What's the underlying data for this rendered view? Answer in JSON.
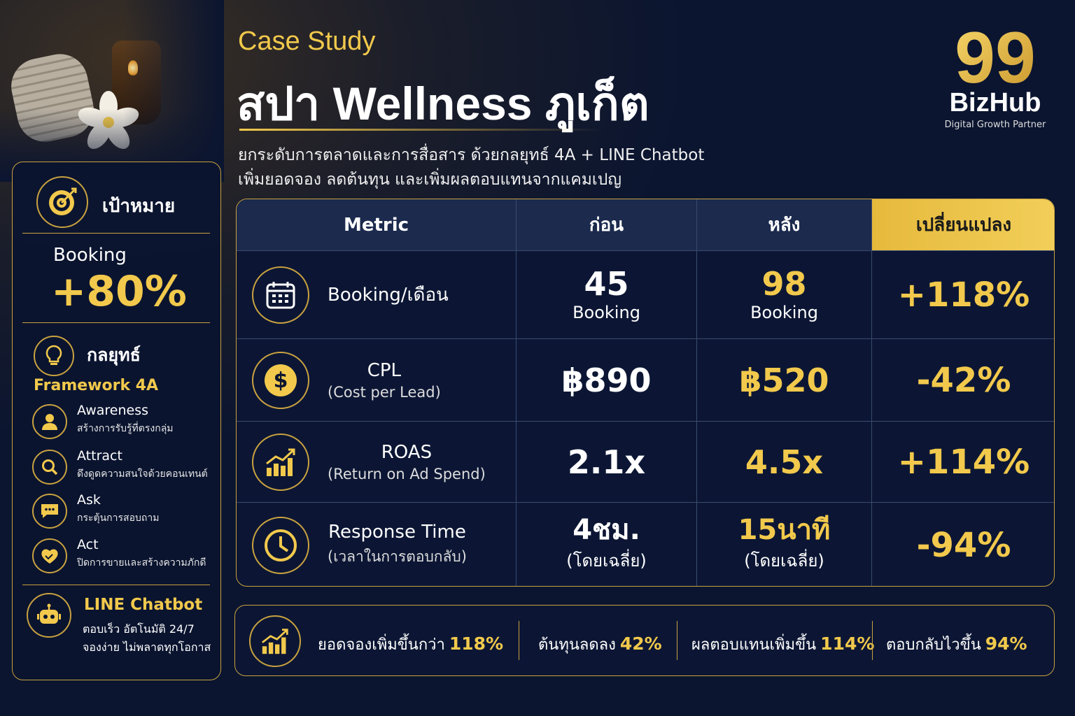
{
  "header": {
    "case_label": "Case Study",
    "title": "สปา Wellness ภูเก็ต",
    "subtitle_1": "ยกระดับการตลาดและการสื่อสาร ด้วยกลยุทธ์ 4A + LINE Chatbot",
    "subtitle_2": "เพิ่มยอดจอง ลดต้นทุน และเพิ่มผลตอบแทนจากแคมเปญ"
  },
  "logo": {
    "mark": "99",
    "name": "BizHub",
    "tagline": "Digital Growth Partner"
  },
  "left_panel": {
    "goal_label": "เป้าหมาย",
    "goal_metric": "Booking",
    "goal_value": "+80%",
    "strategy_label": "กลยุทธ์",
    "framework": "Framework 4A",
    "steps": [
      {
        "title": "Awareness",
        "desc": "สร้างการรับรู้ที่ตรงกลุ่ม",
        "icon": "person-icon"
      },
      {
        "title": "Attract",
        "desc": "ดึงดูดความสนใจด้วยคอนเทนต์",
        "icon": "search-icon"
      },
      {
        "title": "Ask",
        "desc": "กระตุ้นการสอบถาม",
        "icon": "chat-icon"
      },
      {
        "title": "Act",
        "desc": "ปิดการขายและสร้างความภักดี",
        "icon": "handshake-icon"
      }
    ],
    "chatbot_title": "LINE Chatbot",
    "chatbot_line1": "ตอบเร็ว อัตโนมัติ 24/7",
    "chatbot_line2": "จองง่าย ไม่พลาดทุกโอกาส"
  },
  "table": {
    "headers": [
      "Metric",
      "ก่อน",
      "หลัง",
      "เปลี่ยนแปลง"
    ],
    "rows": [
      {
        "icon": "calendar-icon",
        "metric": "Booking/เดือน",
        "metric_sub": "",
        "before": "45",
        "before_unit": "Booking",
        "after": "98",
        "after_unit": "Booking",
        "change": "+118%"
      },
      {
        "icon": "dollar-coin-icon",
        "metric": "CPL",
        "metric_sub": "(Cost per Lead)",
        "before": "฿890",
        "before_unit": "",
        "after": "฿520",
        "after_unit": "",
        "change": "-42%"
      },
      {
        "icon": "growth-chart-icon",
        "metric": "ROAS",
        "metric_sub": "(Return on Ad Spend)",
        "before": "2.1x",
        "before_unit": "",
        "after": "4.5x",
        "after_unit": "",
        "change": "+114%"
      },
      {
        "icon": "clock-icon",
        "metric": "Response Time",
        "metric_sub": "(เวลาในการตอบกลับ)",
        "before": "4ชม.",
        "before_unit": "(โดยเฉลี่ย)",
        "after": "15นาที",
        "after_unit": "(โดยเฉลี่ย)",
        "change": "-94%"
      }
    ]
  },
  "summary": [
    {
      "text": "ยอดจองเพิ่มขึ้นกว่า",
      "value": "118%"
    },
    {
      "text": "ต้นทุนลดลง",
      "value": "42%"
    },
    {
      "text": "ผลตอบแทนเพิ่มขึ้น",
      "value": "114%"
    },
    {
      "text": "ตอบกลับไวขึ้น",
      "value": "94%"
    }
  ],
  "colors": {
    "background": "#0b1530",
    "accent_gold": "#f2c94c",
    "border_gold": "#c9a240"
  }
}
